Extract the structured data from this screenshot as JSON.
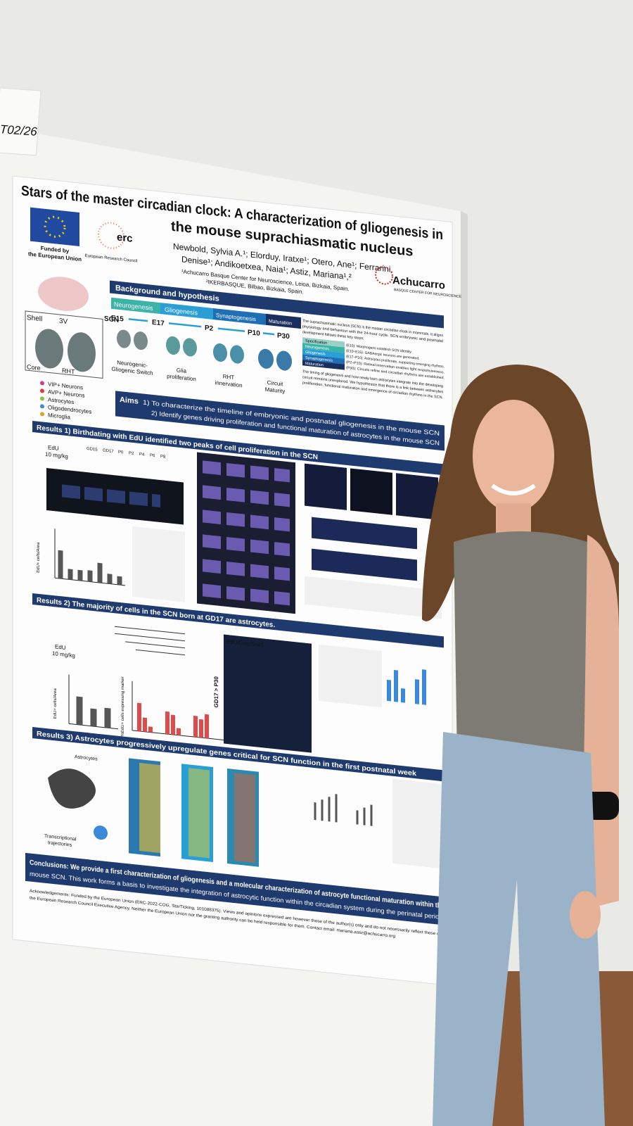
{
  "tag": "T02/26",
  "header": {
    "title_line1": "Stars of the master circadian clock: A characterization of gliogenesis in",
    "title_line2": "the mouse suprachiasmatic nucleus",
    "authors": [
      "Newbold, Sylvia A.¹; Elorduy, Iratxe¹; Otero, Ane¹; Ferrarini,",
      "Denise¹; Andikoetxea, Naia¹; Astiz, Mariana¹,²"
    ],
    "affiliations": [
      "¹Achucarro Basque Center for Neuroscience, Leioa, Bizkaia, Spain.",
      "²IKERBASQUE, Bilbao, Bizkaia, Spain."
    ]
  },
  "logos": {
    "eu": [
      "Funded by",
      "the European Union"
    ],
    "erc": "erc",
    "erc_sub": "European Research Council",
    "achucarro": "Achucarro",
    "achucarro_sub": "BASQUE CENTER FOR NEUROSCIENCE"
  },
  "background": {
    "heading": "Background and hypothesis",
    "stages": [
      "Neurogenesis",
      "Gliogenesis",
      "Synaptogenesis",
      "Maturation"
    ],
    "timepoints": [
      "E15",
      "E17",
      "P2",
      "P10",
      "P30"
    ],
    "stage_labels": [
      [
        "Neurogenic-",
        "Gliogenic Switch"
      ],
      [
        "Glia",
        "proliferation"
      ],
      [
        "RHT",
        "innervation"
      ],
      [
        "Circuit",
        "Maturity"
      ]
    ],
    "diagram_labels": [
      "Shell",
      "3V",
      "SCN",
      "Core",
      "RHT"
    ],
    "legend": [
      "VIP+ Neurons",
      "AVP+ Neurons",
      "Astrocytes",
      "Oligodendrocytes",
      "Microglia"
    ],
    "text": [
      "The suprachiasmatic nucleus (SCN) is the master circadian clock in mammals. It aligns",
      "physiology and behaviour with the 24-hour cycle. SCN embryonic and postnatal",
      "development follows these key steps:"
    ],
    "steps": [
      [
        "Specification",
        "(E10): Morphogens establish SCN identity."
      ],
      [
        "Neurogenesis",
        "(E10–E15): GABAergic neurons are generated."
      ],
      [
        "Gliogenesis",
        "(E17–P10): Astrocytes proliferate, supporting emerging rhythms."
      ],
      [
        "Synaptogenesis",
        "(P2–P10): Retinal innervation enables light responsiveness."
      ],
      [
        "Maturation",
        "(P30): Circuits refine and circadian rhythms are established."
      ]
    ],
    "hypothesis": [
      "The timing of gliogenesis and how newly born astrocytes integrate into the developing",
      "circuit remains unexplored. We hypothesize that there is a link between astrocytes",
      "proliferation, functional maturation and emergence of circadian rhythms in the SCN."
    ]
  },
  "aims": {
    "label": "Aims",
    "items": [
      "1) To characterize the timeline of embryonic and postnatal gliogenesis in the mouse SCN",
      "2) Identify genes driving proliferation and functional maturation of astrocytes in the mouse SCN"
    ]
  },
  "results": [
    "Results 1) Birthdating with EdU identified two peaks of cell proliferation in the SCN",
    "Results 2) The majority of cells in the SCN born at GD17 are astrocytes.",
    "Results 3) Astrocytes progressively upregulate genes critical for SCN function in the first postnatal week"
  ],
  "figure_labels": {
    "edu": "EdU",
    "dose": "10 mg/kg",
    "r1_times": [
      "GD15",
      "GD17",
      "P0",
      "P2",
      "P4",
      "P6",
      "P8"
    ],
    "r1_y": "EdU+ cells/Area",
    "r2_y": "%EdU+ cells expressing marker",
    "r2_panel": "EdU/GlapSox9",
    "r2_group": "GD17 > P30",
    "r3_astro": "Astrocytes",
    "r3_traj": [
      "Transcriptional",
      "trajectories"
    ]
  },
  "conclusions": [
    "Conclusions: We provide a first characterization of gliogenesis and a molecular characterization of astrocyte functional maturation within the",
    "mouse SCN. This work forms a basis to investigate the integration of astrocytic function within the circadian system during the perinatal period."
  ],
  "acknowledgements": [
    "Acknowledgements: Funded by the European Union (ERC-2022-COG, StarTicking, 101088375). Views and opinions expressed are however those of the author(s) only and do not necessarily reflect those of the",
    "the European Research Council Executive Agency. Neither the European Union nor the granting authority can be held responsible for them. Contact email: mariana.astiz@achucarro.org"
  ]
}
